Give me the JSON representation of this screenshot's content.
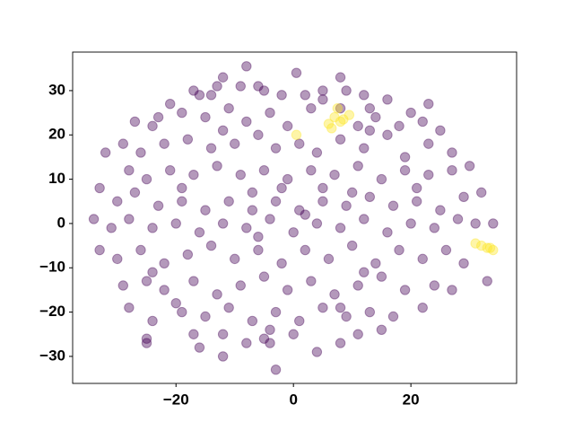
{
  "chart_data": {
    "type": "scatter",
    "xlim": [
      -37.6,
      38
    ],
    "ylim": [
      -36.1,
      38.7
    ],
    "xticks": [
      {
        "value": -20,
        "label": "−20"
      },
      0,
      20
    ],
    "yticks": [
      {
        "value": -30,
        "label": "−30"
      },
      {
        "value": -20,
        "label": "−20"
      },
      {
        "value": -10,
        "label": "−10"
      },
      0,
      10,
      20,
      30
    ],
    "series": [
      {
        "color": "#440154",
        "x": [
          -8,
          0.5,
          8,
          -12,
          -16,
          -21,
          -17,
          -14,
          -13,
          -9,
          -6,
          -5,
          -2,
          2,
          5,
          9,
          12,
          16,
          20,
          23,
          5,
          13,
          -27,
          -23,
          -19,
          -15,
          -11,
          -8,
          -4,
          -1,
          3,
          8,
          11,
          14,
          18,
          22,
          25,
          -29,
          -26,
          -22,
          -18,
          -14,
          -10,
          -6,
          -3,
          1,
          4,
          8,
          12,
          16,
          19,
          23,
          27,
          -24,
          -12,
          13,
          -32,
          -28,
          -25,
          -21,
          -17,
          -13,
          -9,
          -5,
          -1,
          3,
          7,
          11,
          15,
          19,
          23,
          27,
          30,
          -19,
          -7,
          5,
          21,
          -33,
          -30,
          -27,
          -23,
          -19,
          -15,
          -11,
          -7,
          -3,
          1,
          5,
          9,
          13,
          17,
          21,
          25,
          29,
          32,
          10,
          -2,
          -34,
          -31,
          -28,
          -24,
          -20,
          -16,
          -12,
          -8,
          -4,
          0,
          4,
          8,
          12,
          16,
          20,
          24,
          28,
          31,
          34,
          -6,
          2,
          -33,
          -30,
          -26,
          -22,
          -18,
          -14,
          -10,
          -6,
          -2,
          2,
          6,
          10,
          14,
          18,
          22,
          26,
          29,
          -24,
          12,
          -29,
          -25,
          -22,
          -17,
          -13,
          -9,
          -5,
          -1,
          3,
          7,
          11,
          15,
          19,
          24,
          27,
          33,
          -20,
          8,
          -28,
          -24,
          -19,
          -15,
          -11,
          -7,
          -3,
          1,
          5,
          9,
          13,
          17,
          22,
          -17,
          -4,
          -25,
          -25,
          -16,
          -12,
          -8,
          -5,
          0,
          4,
          8,
          11,
          15,
          -12,
          -4,
          -3
        ],
        "y": [
          35.5,
          34,
          33,
          33,
          29,
          27,
          30,
          29,
          31,
          31,
          31,
          30,
          29,
          29,
          30,
          30,
          29,
          28,
          25,
          27,
          28,
          26,
          23,
          24,
          25,
          24,
          26,
          23,
          25,
          22,
          26,
          26,
          22,
          24,
          22,
          23,
          21,
          18,
          16,
          18,
          19,
          17,
          18,
          20,
          17,
          18,
          16,
          19,
          17,
          20,
          15,
          18,
          16,
          22,
          21,
          21,
          16,
          12,
          10,
          12,
          11,
          13,
          11,
          12,
          10,
          12,
          11,
          13,
          10,
          12,
          11,
          12,
          13,
          8,
          7,
          8,
          8,
          8,
          5,
          7,
          4,
          5,
          3,
          5,
          3,
          5,
          3,
          5,
          4,
          6,
          4,
          5,
          3,
          6,
          7,
          7,
          8,
          1,
          -1,
          1,
          -1,
          0,
          -2,
          0,
          -1,
          1,
          -2,
          0,
          -1,
          1,
          -2,
          0,
          -1,
          1,
          0,
          0,
          -3,
          2,
          -6,
          -8,
          -6,
          -9,
          -7,
          -5,
          -8,
          -6,
          -9,
          -6,
          -8,
          -5,
          -9,
          -6,
          -8,
          -6,
          -9,
          -11,
          -11,
          -14,
          -13,
          -15,
          -13,
          -16,
          -14,
          -12,
          -15,
          -13,
          -16,
          -14,
          -12,
          -15,
          -14,
          -15,
          -13,
          -18,
          -19,
          -19,
          -22,
          -20,
          -21,
          -19,
          -22,
          -20,
          -22,
          -19,
          -21,
          -20,
          -21,
          -19,
          -25,
          -24,
          -26,
          -27,
          -28,
          -25,
          -27,
          -26,
          -25,
          -29,
          -27,
          -25,
          -24,
          -30,
          -27,
          -33
        ]
      },
      {
        "color": "#fde725",
        "x": [
          0.5,
          6,
          6.5,
          7,
          7.5,
          8,
          8.5,
          9.5,
          31,
          32,
          33,
          33.5,
          34
        ],
        "y": [
          20,
          22.5,
          21.5,
          24,
          26,
          23,
          23.5,
          24.5,
          -4.5,
          -5,
          -5.5,
          -5.5,
          -6
        ]
      }
    ]
  }
}
